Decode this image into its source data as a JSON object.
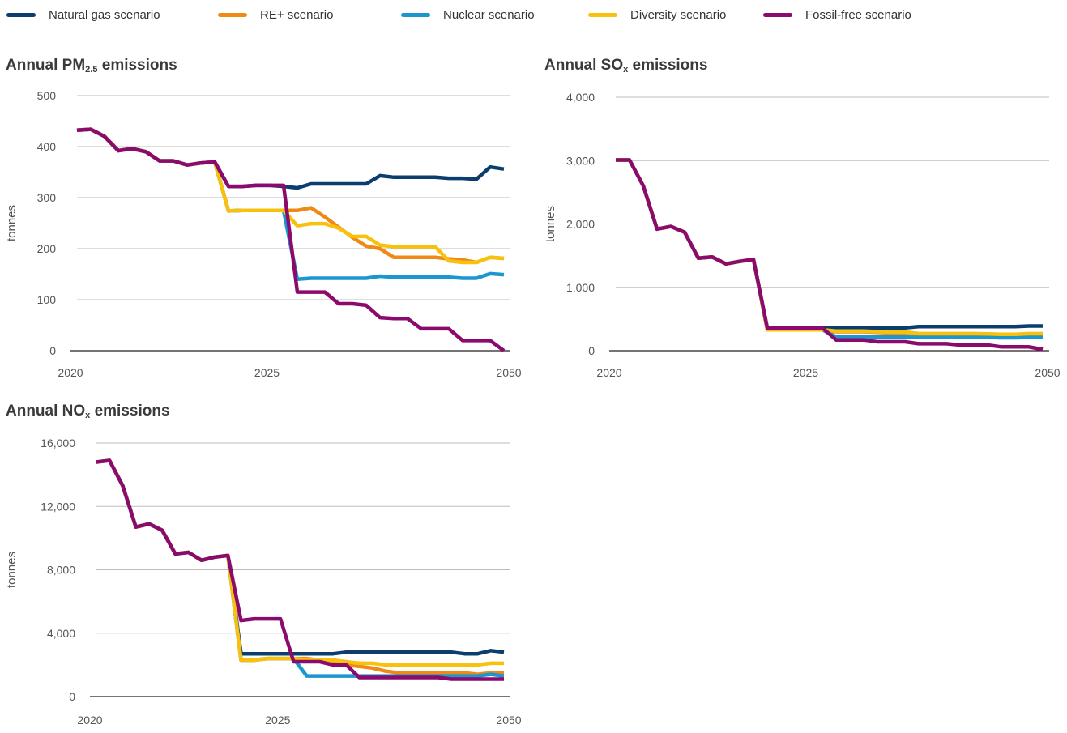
{
  "legend": [
    {
      "name": "Natural gas scenario",
      "color": "#0b3d6e"
    },
    {
      "name": "RE+ scenario",
      "color": "#ef8a17"
    },
    {
      "name": "Nuclear scenario",
      "color": "#1a97cf"
    },
    {
      "name": "Diversity scenario",
      "color": "#f7c10e"
    },
    {
      "name": "Fossil-free scenario",
      "color": "#8b0a6e"
    }
  ],
  "chart_data": [
    {
      "type": "line",
      "title": "Annual PM",
      "title_sub": "2.5",
      "title_rest": " emissions",
      "ylabel": "tonnes",
      "ylim": [
        0,
        500
      ],
      "yticks": [
        0,
        100,
        200,
        300,
        400,
        500
      ],
      "ytick_labels": [
        "0",
        "100",
        "200",
        "300",
        "400",
        "500"
      ],
      "grid": true,
      "x_tick_labels": [
        "2020",
        "2025",
        "2050"
      ],
      "series": [
        {
          "name": "Natural gas scenario",
          "color": "#0b3d6e",
          "values": [
            432,
            434,
            420,
            392,
            396,
            390,
            372,
            372,
            364,
            368,
            370,
            322,
            322,
            324,
            324,
            322,
            319,
            327,
            327,
            327,
            327,
            327,
            343,
            340,
            340,
            340,
            340,
            338,
            338,
            336,
            360,
            356
          ]
        },
        {
          "name": "RE+ scenario",
          "color": "#ef8a17",
          "values": [
            432,
            434,
            420,
            392,
            396,
            390,
            372,
            372,
            364,
            368,
            370,
            274,
            275,
            275,
            275,
            275,
            275,
            280,
            262,
            242,
            222,
            205,
            200,
            183,
            183,
            183,
            183,
            180,
            178,
            173,
            183,
            181
          ]
        },
        {
          "name": "Nuclear scenario",
          "color": "#1a97cf",
          "values": [
            432,
            434,
            420,
            392,
            396,
            390,
            372,
            372,
            364,
            368,
            370,
            274,
            275,
            275,
            275,
            275,
            140,
            142,
            142,
            142,
            142,
            142,
            146,
            144,
            144,
            144,
            144,
            144,
            142,
            142,
            151,
            149
          ]
        },
        {
          "name": "Diversity scenario",
          "color": "#f7c10e",
          "values": [
            432,
            434,
            420,
            392,
            396,
            390,
            372,
            372,
            364,
            368,
            370,
            274,
            275,
            275,
            275,
            275,
            245,
            249,
            249,
            240,
            224,
            224,
            207,
            204,
            204,
            204,
            204,
            176,
            173,
            173,
            183,
            181
          ]
        },
        {
          "name": "Fossil-free scenario",
          "color": "#8b0a6e",
          "values": [
            432,
            434,
            420,
            392,
            396,
            390,
            372,
            372,
            364,
            368,
            370,
            322,
            322,
            324,
            324,
            324,
            115,
            115,
            115,
            92,
            92,
            89,
            65,
            63,
            63,
            43,
            43,
            43,
            20,
            20,
            20,
            0
          ]
        }
      ]
    },
    {
      "type": "line",
      "title": "Annual SO",
      "title_sub": "x",
      "title_rest": " emissions",
      "ylabel": "tonnes",
      "ylim": [
        0,
        4000
      ],
      "yticks": [
        0,
        1000,
        2000,
        3000,
        4000
      ],
      "ytick_labels": [
        "0",
        "1,000",
        "2,000",
        "3,000",
        "4,000"
      ],
      "grid": true,
      "x_tick_labels": [
        "2020",
        "2025",
        "2050"
      ],
      "series": [
        {
          "name": "Natural gas scenario",
          "color": "#0b3d6e",
          "values": [
            3010,
            3010,
            2600,
            1920,
            1960,
            1870,
            1460,
            1480,
            1370,
            1410,
            1440,
            360,
            360,
            360,
            360,
            360,
            360,
            360,
            360,
            360,
            360,
            360,
            380,
            380,
            380,
            380,
            380,
            380,
            380,
            380,
            390,
            390
          ]
        },
        {
          "name": "RE+ scenario",
          "color": "#ef8a17",
          "values": [
            3010,
            3010,
            2600,
            1920,
            1960,
            1870,
            1460,
            1480,
            1370,
            1410,
            1440,
            330,
            330,
            330,
            330,
            330,
            300,
            300,
            300,
            290,
            280,
            270,
            250,
            250,
            250,
            250,
            250,
            245,
            240,
            240,
            250,
            245
          ]
        },
        {
          "name": "Nuclear scenario",
          "color": "#1a97cf",
          "values": [
            3010,
            3010,
            2600,
            1920,
            1960,
            1870,
            1460,
            1480,
            1370,
            1410,
            1440,
            330,
            330,
            330,
            330,
            330,
            220,
            220,
            220,
            220,
            215,
            215,
            210,
            210,
            210,
            210,
            210,
            210,
            205,
            205,
            210,
            210
          ]
        },
        {
          "name": "Diversity scenario",
          "color": "#f7c10e",
          "values": [
            3010,
            3010,
            2600,
            1920,
            1960,
            1870,
            1460,
            1480,
            1370,
            1410,
            1440,
            330,
            330,
            330,
            330,
            330,
            310,
            310,
            310,
            300,
            295,
            295,
            270,
            270,
            270,
            270,
            270,
            265,
            260,
            260,
            270,
            270
          ]
        },
        {
          "name": "Fossil-free scenario",
          "color": "#8b0a6e",
          "values": [
            3010,
            3010,
            2600,
            1920,
            1960,
            1870,
            1460,
            1480,
            1370,
            1410,
            1440,
            360,
            360,
            360,
            360,
            360,
            170,
            170,
            170,
            140,
            140,
            140,
            110,
            110,
            110,
            90,
            90,
            90,
            60,
            60,
            60,
            20
          ]
        }
      ]
    },
    {
      "type": "line",
      "title": "Annual NO",
      "title_sub": "x",
      "title_rest": " emissions",
      "ylabel": "tonnes",
      "ylim": [
        0,
        16000
      ],
      "yticks": [
        0,
        4000,
        8000,
        12000,
        16000
      ],
      "ytick_labels": [
        "0",
        "4,000",
        "8,000",
        "12,000",
        "16,000"
      ],
      "grid": true,
      "x_tick_labels": [
        "2020",
        "2025",
        "2050"
      ],
      "series": [
        {
          "name": "Natural gas scenario",
          "color": "#0b3d6e",
          "values": [
            14800,
            14900,
            13300,
            10700,
            10900,
            10500,
            9000,
            9100,
            8600,
            8800,
            8900,
            2700,
            2700,
            2700,
            2700,
            2700,
            2700,
            2700,
            2700,
            2800,
            2800,
            2800,
            2800,
            2800,
            2800,
            2800,
            2800,
            2800,
            2700,
            2700,
            2900,
            2800
          ]
        },
        {
          "name": "RE+ scenario",
          "color": "#ef8a17",
          "values": [
            14800,
            14900,
            13300,
            10700,
            10900,
            10500,
            9000,
            9100,
            8600,
            8800,
            8900,
            2300,
            2300,
            2400,
            2400,
            2400,
            2400,
            2300,
            2200,
            2000,
            1900,
            1800,
            1600,
            1500,
            1500,
            1500,
            1500,
            1500,
            1500,
            1400,
            1500,
            1500
          ]
        },
        {
          "name": "Nuclear scenario",
          "color": "#1a97cf",
          "values": [
            14800,
            14900,
            13300,
            10700,
            10900,
            10500,
            9000,
            9100,
            8600,
            8800,
            8900,
            2300,
            2300,
            2400,
            2400,
            2400,
            1300,
            1300,
            1300,
            1300,
            1300,
            1300,
            1300,
            1300,
            1300,
            1300,
            1300,
            1300,
            1300,
            1300,
            1400,
            1300
          ]
        },
        {
          "name": "Diversity scenario",
          "color": "#f7c10e",
          "values": [
            14800,
            14900,
            13300,
            10700,
            10900,
            10500,
            9000,
            9100,
            8600,
            8800,
            8900,
            2300,
            2300,
            2400,
            2400,
            2400,
            2300,
            2300,
            2300,
            2200,
            2100,
            2100,
            2000,
            2000,
            2000,
            2000,
            2000,
            2000,
            2000,
            2000,
            2100,
            2100
          ]
        },
        {
          "name": "Fossil-free scenario",
          "color": "#8b0a6e",
          "values": [
            14800,
            14900,
            13300,
            10700,
            10900,
            10500,
            9000,
            9100,
            8600,
            8800,
            8900,
            4800,
            4900,
            4900,
            4900,
            2200,
            2200,
            2200,
            2000,
            2000,
            1200,
            1200,
            1200,
            1200,
            1200,
            1200,
            1200,
            1100,
            1100,
            1100,
            1100,
            1100
          ]
        }
      ]
    }
  ]
}
